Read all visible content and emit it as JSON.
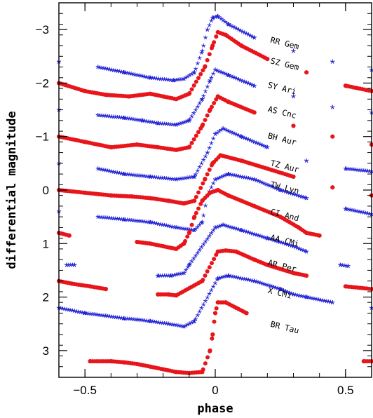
{
  "chart_data": {
    "type": "scatter",
    "xlabel": "phase",
    "ylabel": "differential magnitude",
    "xlim": [
      -0.6,
      0.6
    ],
    "ylim": [
      3.5,
      -3.5
    ],
    "y_inverted": true,
    "x_ticks": [
      {
        "value": -0.5,
        "label": "−0.5"
      },
      {
        "value": 0,
        "label": "0"
      },
      {
        "value": 0.5,
        "label": "0.5"
      }
    ],
    "y_ticks": [
      {
        "value": -3,
        "label": "−3"
      },
      {
        "value": -2,
        "label": "−2"
      },
      {
        "value": -1,
        "label": "−1"
      },
      {
        "value": 0,
        "label": "0"
      },
      {
        "value": 1,
        "label": "1"
      },
      {
        "value": 2,
        "label": "2"
      },
      {
        "value": 3,
        "label": "3"
      }
    ],
    "colors": {
      "blue_stars": "#1f1fd6",
      "red_dots": "#e8151b"
    },
    "series": [
      {
        "name": "RR Gem",
        "marker": "star",
        "color": "#1f1fd6",
        "label_x": 0.21,
        "label_y": -2.76,
        "points": [
          [
            -0.6,
            -2.4
          ],
          [
            -0.45,
            -2.3
          ],
          [
            -0.35,
            -2.2
          ],
          [
            -0.25,
            -2.1
          ],
          [
            -0.16,
            -2.05
          ],
          [
            -0.12,
            -2.08
          ],
          [
            -0.08,
            -2.2
          ],
          [
            -0.05,
            -2.6
          ],
          [
            -0.03,
            -3.0
          ],
          [
            -0.01,
            -3.22
          ],
          [
            0.01,
            -3.25
          ],
          [
            0.05,
            -3.1
          ],
          [
            0.15,
            -2.85
          ],
          [
            0.3,
            -2.6
          ],
          [
            0.45,
            -2.4
          ],
          [
            0.6,
            -2.25
          ]
        ]
      },
      {
        "name": "SZ Gem",
        "marker": "dot",
        "color": "#e8151b",
        "label_x": 0.21,
        "label_y": -2.37,
        "points": [
          [
            -0.6,
            -2.0
          ],
          [
            -0.5,
            -1.85
          ],
          [
            -0.42,
            -1.78
          ],
          [
            -0.33,
            -1.75
          ],
          [
            -0.25,
            -1.8
          ],
          [
            -0.2,
            -1.75
          ],
          [
            -0.15,
            -1.7
          ],
          [
            -0.1,
            -1.8
          ],
          [
            -0.04,
            -2.3
          ],
          [
            -0.01,
            -2.7
          ],
          [
            0.01,
            -2.95
          ],
          [
            0.04,
            -2.9
          ],
          [
            0.1,
            -2.7
          ],
          [
            0.2,
            -2.45
          ],
          [
            0.35,
            -2.2
          ],
          [
            0.5,
            -1.95
          ],
          [
            0.6,
            -1.85
          ]
        ]
      },
      {
        "name": "SY Ari",
        "marker": "star",
        "color": "#1f1fd6",
        "label_x": 0.2,
        "label_y": -1.92,
        "points": [
          [
            -0.6,
            -1.5
          ],
          [
            -0.45,
            -1.4
          ],
          [
            -0.35,
            -1.35
          ],
          [
            -0.28,
            -1.3
          ],
          [
            -0.22,
            -1.25
          ],
          [
            -0.15,
            -1.22
          ],
          [
            -0.1,
            -1.3
          ],
          [
            -0.05,
            -1.7
          ],
          [
            -0.02,
            -2.05
          ],
          [
            0.0,
            -2.25
          ],
          [
            0.05,
            -2.15
          ],
          [
            0.15,
            -1.95
          ],
          [
            0.3,
            -1.75
          ],
          [
            0.45,
            -1.55
          ],
          [
            0.6,
            -1.45
          ]
        ]
      },
      {
        "name": "AS Cnc",
        "marker": "dot",
        "color": "#e8151b",
        "label_x": 0.2,
        "label_y": -1.47,
        "points": [
          [
            -0.6,
            -1.0
          ],
          [
            -0.5,
            -0.9
          ],
          [
            -0.4,
            -0.8
          ],
          [
            -0.3,
            -0.85
          ],
          [
            -0.22,
            -0.8
          ],
          [
            -0.15,
            -0.75
          ],
          [
            -0.1,
            -0.8
          ],
          [
            -0.05,
            -1.2
          ],
          [
            -0.02,
            -1.5
          ],
          [
            0.01,
            -1.75
          ],
          [
            0.05,
            -1.65
          ],
          [
            0.15,
            -1.45
          ],
          [
            0.3,
            -1.2
          ],
          [
            0.45,
            -1.0
          ],
          [
            0.6,
            -0.85
          ]
        ]
      },
      {
        "name": "BH Aur",
        "marker": "star",
        "color": "#1f1fd6",
        "label_x": 0.2,
        "label_y": -0.97,
        "points": [
          [
            -0.6,
            -0.5
          ],
          [
            -0.45,
            -0.4
          ],
          [
            -0.35,
            -0.3
          ],
          [
            -0.25,
            -0.25
          ],
          [
            -0.15,
            -0.2
          ],
          [
            -0.08,
            -0.25
          ],
          [
            -0.03,
            -0.7
          ],
          [
            0.0,
            -1.05
          ],
          [
            0.03,
            -1.15
          ],
          [
            0.1,
            -1.0
          ],
          [
            0.2,
            -0.8
          ],
          [
            0.35,
            -0.55
          ],
          [
            0.5,
            -0.4
          ],
          [
            0.6,
            -0.35
          ]
        ]
      },
      {
        "name": "TZ Aur",
        "marker": "dot",
        "color": "#e8151b",
        "label_x": 0.21,
        "label_y": -0.46,
        "points": [
          [
            -0.6,
            0.0
          ],
          [
            -0.5,
            0.05
          ],
          [
            -0.4,
            0.1
          ],
          [
            -0.32,
            0.12
          ],
          [
            -0.25,
            0.15
          ],
          [
            -0.18,
            0.2
          ],
          [
            -0.12,
            0.25
          ],
          [
            -0.08,
            0.2
          ],
          [
            -0.04,
            -0.2
          ],
          [
            -0.01,
            -0.5
          ],
          [
            0.02,
            -0.65
          ],
          [
            0.1,
            -0.55
          ],
          [
            0.2,
            -0.4
          ],
          [
            0.3,
            -0.25
          ],
          [
            0.45,
            -0.05
          ],
          [
            0.6,
            0.1
          ]
        ]
      },
      {
        "name": "TW Lyn",
        "marker": "star",
        "color": "#1f1fd6",
        "label_x": 0.21,
        "label_y": -0.06,
        "points": [
          [
            -0.6,
            0.4
          ],
          [
            -0.45,
            0.5
          ],
          [
            -0.35,
            0.55
          ],
          [
            -0.25,
            0.6
          ],
          [
            -0.15,
            0.7
          ],
          [
            -0.08,
            0.75
          ],
          [
            -0.05,
            0.6
          ],
          [
            -0.03,
            0.1
          ],
          [
            0.0,
            -0.2
          ],
          [
            0.05,
            -0.3
          ],
          [
            0.15,
            -0.2
          ],
          [
            0.25,
            0.0
          ],
          [
            0.35,
            0.15
          ],
          [
            0.5,
            0.35
          ],
          [
            0.6,
            0.45
          ]
        ]
      },
      {
        "name": "CI And",
        "marker": "dot",
        "color": "#e8151b",
        "label_x": 0.21,
        "label_y": 0.45,
        "points": [
          [
            -0.6,
            0.8
          ],
          [
            -0.56,
            0.85
          ],
          [
            -0.3,
            0.97
          ],
          [
            -0.25,
            1.0
          ],
          [
            -0.2,
            1.05
          ],
          [
            -0.15,
            1.1
          ],
          [
            -0.12,
            1.0
          ],
          [
            -0.1,
            0.8
          ],
          [
            -0.08,
            0.5
          ],
          [
            -0.05,
            0.2
          ],
          [
            -0.02,
            0.05
          ],
          [
            0.01,
            0.0
          ],
          [
            0.05,
            0.1
          ],
          [
            0.15,
            0.3
          ],
          [
            0.25,
            0.5
          ],
          [
            0.32,
            0.7
          ],
          [
            0.35,
            0.8
          ],
          [
            0.4,
            0.85
          ]
        ]
      },
      {
        "name": "AA CMi",
        "marker": "star",
        "color": "#1f1fd6",
        "label_x": 0.21,
        "label_y": 0.93,
        "points": [
          [
            -0.57,
            1.4
          ],
          [
            -0.54,
            1.4
          ],
          [
            -0.22,
            1.6
          ],
          [
            -0.17,
            1.6
          ],
          [
            -0.12,
            1.55
          ],
          [
            -0.1,
            1.4
          ],
          [
            0.0,
            0.7
          ],
          [
            0.03,
            0.65
          ],
          [
            0.1,
            0.75
          ],
          [
            0.2,
            0.9
          ],
          [
            0.3,
            1.05
          ],
          [
            0.35,
            1.15
          ],
          [
            0.48,
            1.4
          ],
          [
            0.51,
            1.42
          ]
        ]
      },
      {
        "name": "AR Per",
        "marker": "dot",
        "color": "#e8151b",
        "label_x": 0.2,
        "label_y": 1.4,
        "points": [
          [
            -0.6,
            1.7
          ],
          [
            -0.55,
            1.75
          ],
          [
            -0.48,
            1.8
          ],
          [
            -0.42,
            1.85
          ],
          [
            -0.22,
            1.95
          ],
          [
            -0.18,
            1.95
          ],
          [
            -0.15,
            1.97
          ],
          [
            -0.05,
            1.7
          ],
          [
            0.01,
            1.15
          ],
          [
            0.04,
            1.13
          ],
          [
            0.08,
            1.15
          ],
          [
            0.15,
            1.3
          ],
          [
            0.2,
            1.4
          ],
          [
            0.3,
            1.55
          ],
          [
            0.35,
            1.6
          ],
          [
            0.5,
            1.8
          ],
          [
            0.6,
            1.85
          ]
        ]
      },
      {
        "name": "X CMi",
        "marker": "star",
        "color": "#1f1fd6",
        "label_x": 0.2,
        "label_y": 1.92,
        "points": [
          [
            -0.6,
            2.2
          ],
          [
            -0.5,
            2.3
          ],
          [
            -0.42,
            2.35
          ],
          [
            -0.35,
            2.4
          ],
          [
            -0.3,
            2.42
          ],
          [
            -0.25,
            2.45
          ],
          [
            -0.18,
            2.5
          ],
          [
            -0.12,
            2.55
          ],
          [
            -0.08,
            2.45
          ],
          [
            0.01,
            1.65
          ],
          [
            0.05,
            1.6
          ],
          [
            0.15,
            1.7
          ],
          [
            0.25,
            1.85
          ],
          [
            0.3,
            1.95
          ],
          [
            0.35,
            2.0
          ],
          [
            0.45,
            2.1
          ],
          [
            0.6,
            2.2
          ]
        ]
      },
      {
        "name": "BR Tau",
        "marker": "dot",
        "color": "#e8151b",
        "label_x": 0.21,
        "label_y": 2.55,
        "points": [
          [
            -0.48,
            3.2
          ],
          [
            -0.4,
            3.2
          ],
          [
            -0.35,
            3.22
          ],
          [
            -0.3,
            3.25
          ],
          [
            -0.25,
            3.3
          ],
          [
            -0.2,
            3.35
          ],
          [
            -0.15,
            3.4
          ],
          [
            -0.1,
            3.42
          ],
          [
            -0.05,
            3.4
          ],
          [
            -0.02,
            3.0
          ],
          [
            -0.01,
            2.7
          ],
          [
            0.0,
            2.3
          ],
          [
            0.01,
            2.1
          ],
          [
            0.04,
            2.1
          ],
          [
            0.08,
            2.2
          ],
          [
            0.12,
            2.3
          ],
          [
            0.57,
            3.2
          ],
          [
            0.6,
            3.2
          ]
        ]
      }
    ]
  }
}
